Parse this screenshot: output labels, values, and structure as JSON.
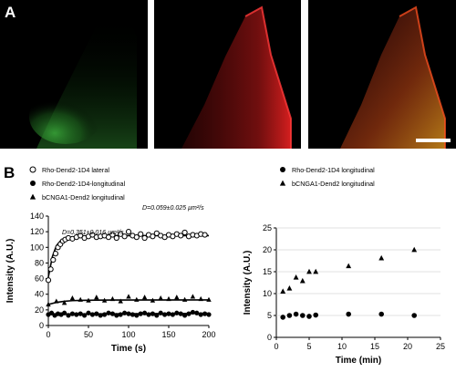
{
  "figure": {
    "panel_a_label": "A",
    "panel_b_label": "B"
  },
  "micrographs": [
    {
      "name": "green-channel",
      "color": "#2e9e2e"
    },
    {
      "name": "red-channel",
      "color": "#c81818"
    },
    {
      "name": "merged-channel",
      "color": "#b06018"
    }
  ],
  "chart_data": [
    {
      "type": "scatter",
      "xlabel": "Time (s)",
      "ylabel": "Intensity (A.U.)",
      "xlim": [
        0,
        200
      ],
      "ylim": [
        0,
        140
      ],
      "xticks": [
        0,
        50,
        100,
        150,
        200
      ],
      "yticks": [
        0,
        20,
        40,
        60,
        80,
        100,
        120,
        140
      ],
      "legend_position": "top-left",
      "series": [
        {
          "name": "Rho-Dend2-1D4 lateral",
          "marker": "open-circle",
          "x": [
            0,
            3,
            6,
            9,
            12,
            15,
            18,
            21,
            25,
            30,
            35,
            40,
            45,
            50,
            55,
            60,
            65,
            70,
            75,
            80,
            85,
            90,
            95,
            100,
            105,
            110,
            115,
            120,
            125,
            130,
            135,
            140,
            145,
            150,
            155,
            160,
            165,
            170,
            175,
            180,
            185,
            190,
            195
          ],
          "y": [
            58,
            72,
            84,
            92,
            100,
            104,
            108,
            110,
            112,
            111,
            113,
            115,
            112,
            114,
            116,
            113,
            114,
            115,
            113,
            116,
            112,
            117,
            114,
            120,
            115,
            113,
            117,
            112,
            116,
            114,
            118,
            115,
            113,
            116,
            114,
            117,
            115,
            119,
            114,
            116,
            115,
            117,
            116
          ]
        },
        {
          "name": "Rho-Dend2-1D4-longitudinal",
          "marker": "filled-circle",
          "x": [
            0,
            4,
            8,
            12,
            16,
            20,
            25,
            30,
            35,
            40,
            45,
            50,
            55,
            60,
            65,
            70,
            75,
            80,
            85,
            90,
            95,
            100,
            105,
            110,
            115,
            120,
            125,
            130,
            135,
            140,
            145,
            150,
            155,
            160,
            165,
            170,
            175,
            180,
            185,
            190,
            195,
            200
          ],
          "y": [
            14,
            16,
            13,
            15,
            14,
            16,
            13,
            15,
            14,
            15,
            13,
            16,
            14,
            15,
            13,
            14,
            16,
            15,
            13,
            14,
            16,
            15,
            14,
            13,
            15,
            16,
            14,
            15,
            13,
            16,
            14,
            15,
            14,
            16,
            15,
            13,
            15,
            17,
            16,
            14,
            15,
            14
          ]
        },
        {
          "name": "bCNGA1-Dend2 longitudinal",
          "marker": "filled-triangle",
          "x": [
            0,
            10,
            20,
            30,
            40,
            50,
            60,
            70,
            80,
            90,
            100,
            110,
            120,
            130,
            140,
            150,
            160,
            170,
            180,
            190,
            200
          ],
          "y": [
            27,
            31,
            29,
            35,
            33,
            32,
            36,
            32,
            34,
            31,
            37,
            33,
            36,
            32,
            35,
            34,
            36,
            33,
            37,
            34,
            33
          ]
        }
      ],
      "fits": [
        {
          "x": [
            0,
            5,
            10,
            15,
            20,
            30,
            40,
            60,
            80,
            200
          ],
          "y": [
            62,
            88,
            102,
            108,
            111,
            113,
            114,
            115,
            115,
            115
          ]
        },
        {
          "x": [
            0,
            10,
            20,
            30,
            40,
            60,
            80,
            200
          ],
          "y": [
            27,
            29.5,
            31,
            31.8,
            32.2,
            32.5,
            32.6,
            32.7
          ]
        },
        {
          "x": [
            0,
            200
          ],
          "y": [
            14.5,
            15.5
          ]
        }
      ],
      "annotations": [
        "D=0.351±0.016  µm²/s",
        "D=0.059±0.025 µm²/s"
      ]
    },
    {
      "type": "scatter",
      "xlabel": "Time (min)",
      "ylabel": "Intensity (A.U.)",
      "xlim": [
        0,
        25
      ],
      "ylim": [
        0,
        25
      ],
      "xticks": [
        0,
        5,
        10,
        15,
        20,
        25
      ],
      "yticks": [
        0,
        5,
        10,
        15,
        20,
        25
      ],
      "legend_position": "top",
      "series": [
        {
          "name": "Rho-Dend2-1D4 longitudinal",
          "marker": "filled-circle",
          "x": [
            1,
            2,
            3,
            4,
            5,
            6,
            11,
            16,
            21
          ],
          "y": [
            4.6,
            5.0,
            5.3,
            5.0,
            4.8,
            5.1,
            5.3,
            5.3,
            5.0
          ]
        },
        {
          "name": "bCNGA1-Dend2 longitudinal",
          "marker": "filled-triangle",
          "x": [
            1,
            2,
            3,
            4,
            5,
            6,
            11,
            16,
            21
          ],
          "y": [
            10.5,
            11.2,
            13.7,
            12.9,
            15.0,
            15.0,
            16.3,
            18.1,
            20.0
          ]
        }
      ]
    }
  ]
}
